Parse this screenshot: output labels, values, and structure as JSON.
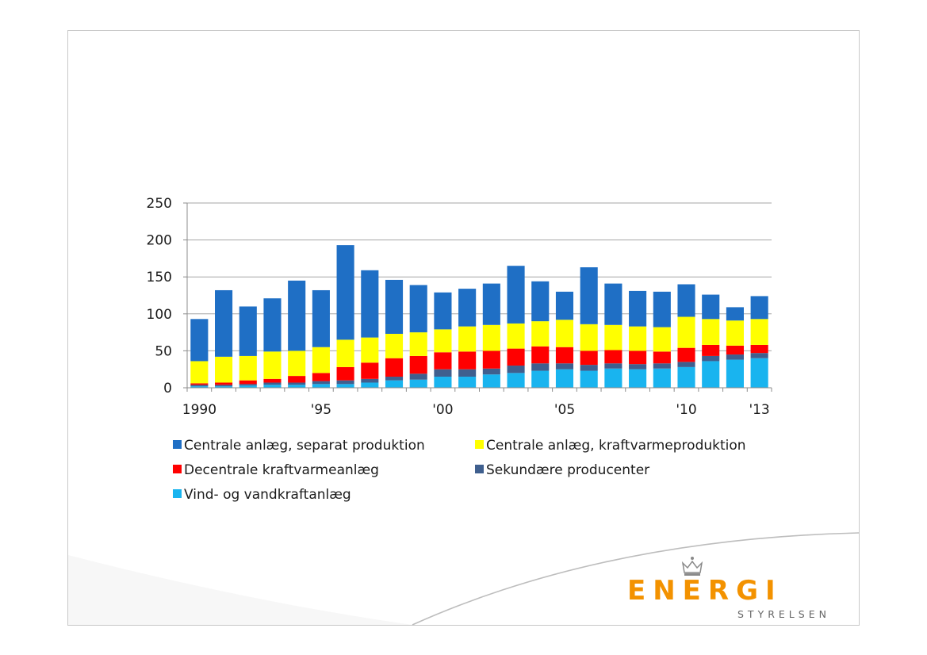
{
  "chart_data": {
    "type": "bar",
    "stacked": true,
    "x": [
      "1990",
      "1991",
      "1992",
      "1993",
      "1994",
      "1995",
      "1996",
      "1997",
      "1998",
      "1999",
      "2000",
      "2001",
      "2002",
      "2003",
      "2004",
      "2005",
      "2006",
      "2007",
      "2008",
      "2009",
      "2010",
      "2011",
      "2012",
      "2013"
    ],
    "x_tick_labels": [
      {
        "year": "1990",
        "label": "1990"
      },
      {
        "year": "1995",
        "label": "'95"
      },
      {
        "year": "2000",
        "label": "'00"
      },
      {
        "year": "2005",
        "label": "'05"
      },
      {
        "year": "2010",
        "label": "'10"
      },
      {
        "year": "2013",
        "label": "'13"
      }
    ],
    "y_ticks": [
      0,
      50,
      100,
      150,
      200,
      250
    ],
    "ylim": [
      0,
      250
    ],
    "grid": true,
    "legend_position": "bottom",
    "series": [
      {
        "name": "Vind- og vandkraftanlæg",
        "color": "#19b4ef",
        "values": [
          2,
          2,
          3,
          4,
          4,
          5,
          5,
          7,
          10,
          11,
          15,
          15,
          18,
          20,
          23,
          25,
          23,
          26,
          25,
          26,
          28,
          36,
          38,
          40
        ]
      },
      {
        "name": "Sekundære producenter",
        "color": "#3f5f8e",
        "values": [
          2,
          2,
          2,
          3,
          3,
          4,
          5,
          5,
          5,
          8,
          10,
          10,
          8,
          10,
          10,
          8,
          8,
          7,
          7,
          7,
          7,
          7,
          7,
          7
        ]
      },
      {
        "name": "Decentrale kraftvarmeanlæg",
        "color": "#ff0000",
        "values": [
          2,
          3,
          5,
          5,
          9,
          11,
          18,
          22,
          25,
          24,
          23,
          24,
          24,
          23,
          23,
          22,
          19,
          18,
          18,
          16,
          19,
          15,
          12,
          11
        ]
      },
      {
        "name": "Centrale anlæg, kraftvarmeproduktion",
        "color": "#ffff00",
        "values": [
          30,
          35,
          33,
          37,
          34,
          35,
          37,
          34,
          33,
          32,
          31,
          34,
          35,
          34,
          34,
          37,
          36,
          34,
          33,
          33,
          42,
          35,
          34,
          35
        ]
      },
      {
        "name": "Centrale anlæg, separat produktion",
        "color": "#1f6fc5",
        "values": [
          57,
          90,
          67,
          72,
          95,
          77,
          128,
          91,
          73,
          64,
          50,
          51,
          56,
          78,
          54,
          38,
          77,
          56,
          48,
          48,
          44,
          33,
          18,
          31
        ]
      }
    ]
  },
  "legend": {
    "items": [
      {
        "label": "Centrale anlæg, separat produktion",
        "color": "#1f6fc5"
      },
      {
        "label": "Centrale anlæg, kraftvarmeproduktion",
        "color": "#ffff00"
      },
      {
        "label": "Decentrale kraftvarmeanlæg",
        "color": "#ff0000"
      },
      {
        "label": "Sekundære producenter",
        "color": "#3f5f8e"
      },
      {
        "label": "Vind- og vandkraftanlæg",
        "color": "#19b4ef"
      }
    ]
  },
  "logo": {
    "word": "ENERGI",
    "sub": "STYRELSEN",
    "color": "#f39200",
    "crown_icon": "crown-icon"
  }
}
